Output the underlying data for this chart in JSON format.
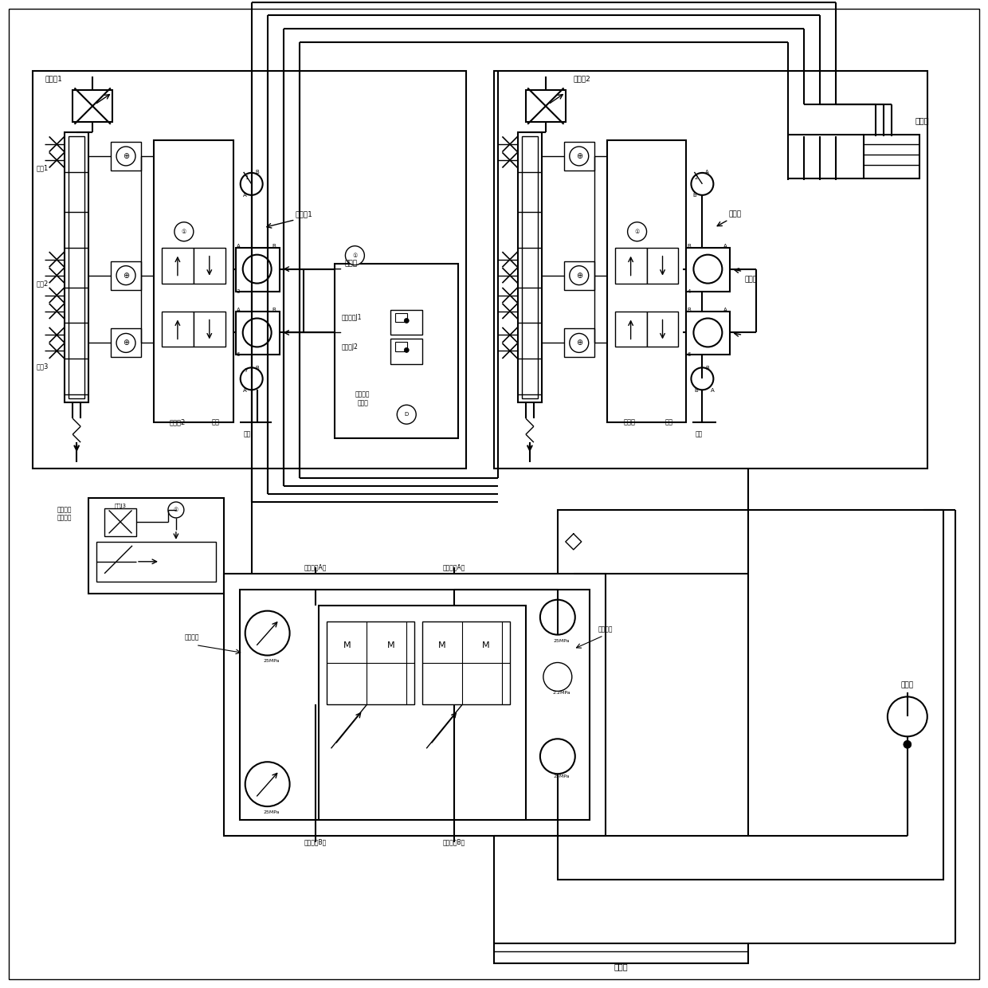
{
  "bg_color": "#ffffff",
  "line_color": "#000000",
  "fig_width": 12.4,
  "fig_height": 12.4,
  "labels": {
    "fenliuqi1": "分流器1",
    "fenliuqi2": "分流器2",
    "zhuyouxiang": "主油箱",
    "weizhi1": "位置1",
    "weizhi2": "位置2",
    "weizhi3": "位置3",
    "zhudonfa1": "液动阀1",
    "zhudonfa2": "液动阀2",
    "zhuangpei": "装装阀",
    "suojin1": "锁钢换向J1",
    "suojin2": "卸荷阀J2",
    "kongzhiyali": "控制压力\n传感器",
    "xingzuyali": "行走压力\n传感器占",
    "zuobianliang": "左变量泵",
    "youbianliang": "右变量泵",
    "zuobianliang_AO": "左变量泵A口",
    "zuobianliang_BO": "左变量泵B口",
    "youbianliang_AO": "右变量泵A口",
    "youbianliang_BO": "右变量泵B口",
    "buchongyuan": "补充源",
    "huiyouxiang": "回油箱",
    "qianjin": "前进",
    "zhudonfa_right": "液动阀",
    "qianjin_right": "前进"
  }
}
